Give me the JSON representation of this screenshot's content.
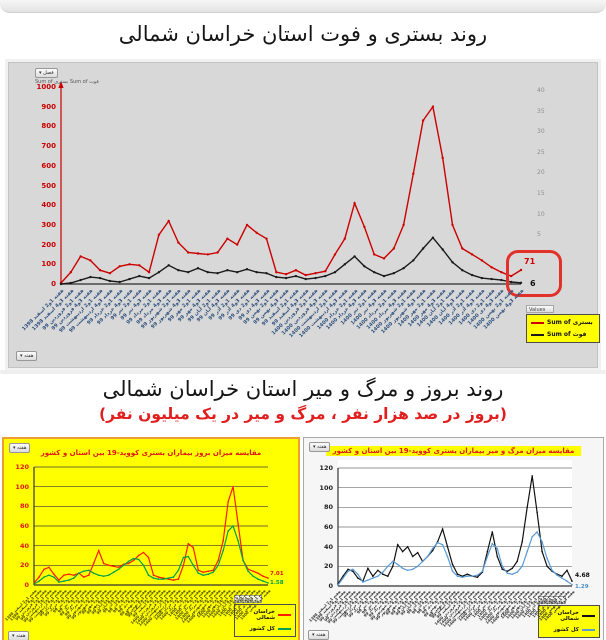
{
  "page": {
    "section1_title": "روند بستری و فوت استان خراسان شمالی",
    "section2_title": "روند بروز و مرگ و میر استان خراسان شمالی",
    "section2_subtitle": "(بروز در صد هزار نفر ، مرگ و میر در یک میلیون نفر)"
  },
  "top_chart": {
    "filter_button": "فصل ▾",
    "series_caption": "Sum of بستری    Sum of فوت",
    "axis_field_button": "هفته ▾",
    "legend_header": "Values",
    "annotation": {
      "hospitalized": "71",
      "deaths": "6"
    },
    "accent_colors": {
      "annotation_box": "#e2312a",
      "axis": "#cc0000",
      "panel_bg": "#d8d8d8",
      "legend_bg": "#ffff00"
    }
  },
  "bottom_left_chart": {
    "field_button": "هفته ▾",
    "legend_header": "Values",
    "panel_bg": "#ffff00",
    "border_color": "#ee9d35"
  },
  "bottom_right_chart": {
    "field_button": "هفته ▾",
    "legend_header": "Values",
    "panel_bg": "#ffffff",
    "title_bg": "#ffff00"
  },
  "week_labels": [
    "هفته 1و2 اسفند 1398",
    "هفته 3و4 اسفند 1398",
    "هفته 1و2 فروردین 99",
    "هفته 3و4 فروردین 99",
    "هفته 1و2 اردیبهشت 99",
    "هفته 3و4 اردیبهشت 99",
    "هفته 1و2 خرداد 99",
    "هفته 3و4 خرداد 99",
    "هفته 1و2 تیر 99",
    "هفته 3و4 تیر 99",
    "هفته 1و2 مرداد 99",
    "هفته 3و4 مرداد 99",
    "هفته 1و2 شهریور 99",
    "هفته 3و4 شهریور 99",
    "هفته 1و2 مهر 99",
    "هفته 3و4 مهر 99",
    "هفته 1و2 آبان 99",
    "هفته 3و4 آبان 99",
    "هفته 1و2 آذر 99",
    "هفته 3و4 آذر 99",
    "هفته 1و2 دی 99",
    "هفته 3و4 دی 99",
    "هفته 1و2 بهمن 99",
    "هفته 3و4 بهمن 99",
    "هفته 1و2 اسفند 99",
    "هفته 3و4 اسفند 99",
    "هفته 1و2 فروردین 1400",
    "هفته 3و4 فروردین 1400",
    "هفته 1و2 اردیبهشت 1400",
    "هفته 3و4 اردیبهشت 1400",
    "هفته 1و2 خرداد 1400",
    "هفته 3و4 خرداد 1400",
    "هفته 1و2 تیر 1400",
    "هفته 3و4 تیر 1400",
    "هفته 1و2 مرداد 1400",
    "هفته 3و4 مرداد 1400",
    "هفته 1و2 شهریور 1400",
    "هفته 3و4 شهریور 1400",
    "هفته 1و2 مهر 1400",
    "هفته 3و4 مهر 1400",
    "هفته 1و2 آبان 1400",
    "هفته 3و4 آبان 1400",
    "هفته 1و2 آذر 1400",
    "هفته 3و4 آذر 1400",
    "هفته 1و2 دی 1400",
    "هفته 3و4 دی 1400",
    "هفته 1و2 بهمن 1400",
    "هفته 3و4 بهمن 1400"
  ],
  "chart_data": [
    {
      "type": "line",
      "title": "روند بستری و فوت استان خراسان شمالی",
      "x": "week_labels",
      "ylim": [
        0,
        1000
      ],
      "y_ticks": [
        1000,
        900,
        800,
        700,
        600,
        500,
        400,
        300,
        200,
        100,
        0
      ],
      "y2_ticks": [
        40,
        35,
        30,
        25,
        20,
        15,
        10,
        5
      ],
      "grid": false,
      "legend_position": "right-bottom",
      "series": [
        {
          "name": "Sum of بستری",
          "color": "#cc0000",
          "values": [
            5,
            60,
            140,
            120,
            70,
            55,
            90,
            100,
            95,
            60,
            250,
            320,
            210,
            160,
            155,
            150,
            160,
            230,
            200,
            300,
            260,
            230,
            60,
            50,
            70,
            45,
            55,
            65,
            150,
            230,
            410,
            290,
            150,
            130,
            180,
            300,
            560,
            830,
            900,
            640,
            300,
            180,
            150,
            120,
            85,
            60,
            40,
            71
          ]
        },
        {
          "name": "Sum of فوت",
          "color": "#1a1a1a",
          "values": [
            0,
            5,
            20,
            35,
            30,
            15,
            10,
            25,
            40,
            30,
            60,
            95,
            70,
            60,
            80,
            60,
            55,
            70,
            60,
            75,
            60,
            55,
            35,
            30,
            40,
            25,
            30,
            40,
            60,
            100,
            140,
            90,
            60,
            40,
            55,
            80,
            120,
            180,
            235,
            175,
            110,
            70,
            45,
            30,
            25,
            20,
            10,
            6
          ]
        }
      ],
      "latest_values": {
        "بستری": 71,
        "فوت": 6
      }
    },
    {
      "type": "line",
      "title": "مقایسه میزان بروز بیماران بستری کووید-19 بین استان و کشور",
      "x": "week_labels",
      "ylim": [
        0,
        120
      ],
      "y_ticks": [
        120,
        100,
        80,
        60,
        40,
        20,
        0
      ],
      "grid": true,
      "legend_position": "right-bottom",
      "series": [
        {
          "name": "خراسان شمالی",
          "color": "#ff1a00",
          "values": [
            2,
            8,
            16,
            18,
            11,
            5,
            10,
            11,
            10,
            12,
            8,
            10,
            22,
            35,
            22,
            20,
            19,
            18,
            21,
            22,
            25,
            30,
            33,
            28,
            10,
            8,
            7,
            6,
            5,
            6,
            20,
            42,
            38,
            15,
            13,
            14,
            15,
            25,
            45,
            85,
            100,
            62,
            25,
            16,
            14,
            12,
            9,
            7
          ]
        },
        {
          "name": "کل کشور",
          "color": "#00a050",
          "values": [
            1,
            4,
            8,
            10,
            8,
            3,
            4,
            5,
            7,
            12,
            14,
            15,
            12,
            10,
            9,
            10,
            13,
            16,
            20,
            24,
            27,
            26,
            20,
            10,
            7,
            6,
            6,
            7,
            8,
            15,
            28,
            29,
            20,
            12,
            10,
            11,
            13,
            20,
            35,
            55,
            60,
            45,
            25,
            14,
            9,
            6,
            4,
            2
          ]
        }
      ],
      "end_labels": {
        "province": "7.01",
        "country": "1.58"
      }
    },
    {
      "type": "line",
      "title": "مقایسه میزان مرگ و میر بیماران بستری کووید-19 بین استان و کشور",
      "x": "week_labels",
      "ylim": [
        0,
        120
      ],
      "y_ticks": [
        120,
        100,
        80,
        60,
        40,
        20,
        0
      ],
      "grid": true,
      "legend_position": "right-bottom",
      "series": [
        {
          "name": "خراسان شمالی",
          "color": "#111111",
          "values": [
            2,
            10,
            17,
            15,
            8,
            5,
            18,
            10,
            16,
            12,
            10,
            20,
            42,
            35,
            40,
            30,
            34,
            25,
            30,
            36,
            45,
            58,
            40,
            22,
            12,
            10,
            12,
            10,
            9,
            14,
            35,
            55,
            30,
            17,
            15,
            18,
            25,
            45,
            80,
            112,
            75,
            35,
            20,
            15,
            12,
            10,
            16,
            5
          ]
        },
        {
          "name": "کل کشور",
          "color": "#5b9bd5",
          "values": [
            1,
            8,
            15,
            17,
            12,
            4,
            6,
            8,
            10,
            14,
            20,
            25,
            22,
            18,
            16,
            17,
            20,
            25,
            30,
            38,
            44,
            42,
            30,
            15,
            10,
            9,
            10,
            10,
            11,
            15,
            30,
            43,
            38,
            20,
            13,
            12,
            14,
            20,
            35,
            50,
            55,
            45,
            28,
            16,
            11,
            8,
            5,
            1.3
          ]
        }
      ],
      "end_labels": {
        "province": "4.68",
        "country": "1.29"
      }
    }
  ]
}
